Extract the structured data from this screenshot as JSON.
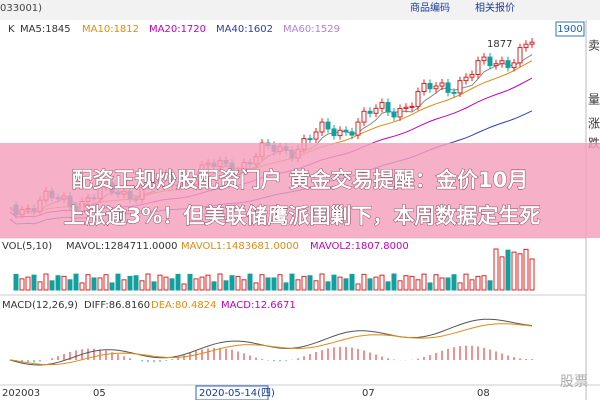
{
  "header": {
    "code": "033001)",
    "buttons": [
      "商品编码",
      "相关报价"
    ],
    "price_box": "1900"
  },
  "legend": {
    "k": "K",
    "ma": [
      "MA5:1845",
      "MA10:1812",
      "MA20:1720",
      "MA40:1602",
      "MA60:1529"
    ]
  },
  "annotation": "1877",
  "volume": {
    "label": "VOL(5,10)",
    "items": [
      "MAVOL:1284711.0000",
      "MAVOL1:1483681.0000",
      "MAVOL2:1807.8000"
    ]
  },
  "macd": {
    "label": "MACD(12,26,9)",
    "items": [
      "DIFF:86.8160",
      "DEA:80.4824",
      "MACD:12.6671"
    ]
  },
  "x_axis": [
    "202003",
    "05",
    "2020-05-14(四)",
    "07",
    "08"
  ],
  "side_buttons": [
    "卖",
    "量",
    "涨",
    "跌"
  ],
  "banner": {
    "lines": [
      "配资正规炒股配资门户 黄金交易提醒：金价10月",
      "上涨逾3%！但美联储鹰派围剿下，本周数据定生死"
    ]
  },
  "watermark": "股票"
}
